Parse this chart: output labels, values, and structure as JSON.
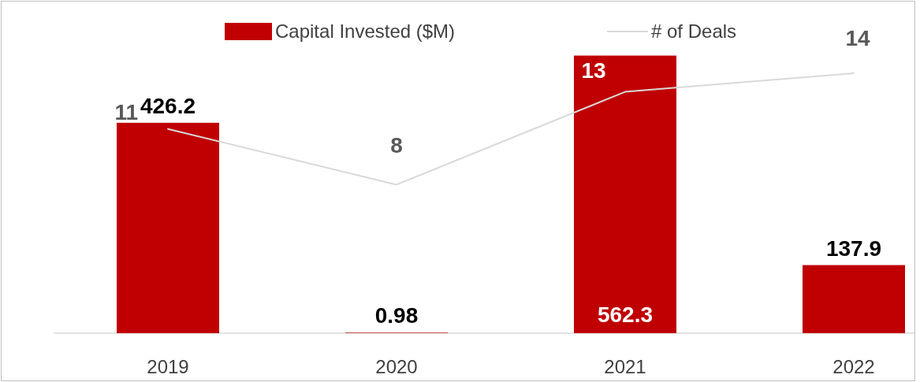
{
  "chart_data": {
    "type": "bar",
    "categories": [
      "2019",
      "2020",
      "2021",
      "2022"
    ],
    "series": [
      {
        "name": "Capital Invested ($M)",
        "color": "#c00000",
        "values": [
          426.2,
          0.98,
          562.3,
          137.9
        ]
      },
      {
        "name": "# of Deals",
        "type": "line",
        "axis": "y2",
        "color": "#d9d9d9",
        "values": [
          11,
          8,
          13,
          14
        ]
      }
    ],
    "data_labels": true,
    "legend": "top"
  }
}
